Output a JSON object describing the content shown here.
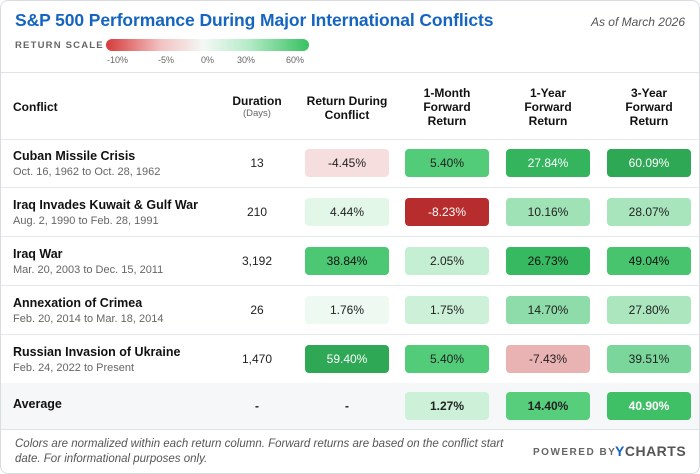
{
  "title": "S&P 500 Performance During Major International Conflicts",
  "as_of": "As of March 2026",
  "scale": {
    "label": "RETURN SCALE",
    "ticks": [
      "-10%",
      "-5%",
      "0%",
      "30%",
      "60%"
    ]
  },
  "headers": {
    "conflict": "Conflict",
    "duration": "Duration",
    "duration_sub": "(Days)",
    "during_1": "Return During",
    "during_2": "Conflict",
    "m1_1": "1-Month",
    "m1_2": "Forward",
    "m1_3": "Return",
    "y1_1": "1-Year",
    "y1_2": "Forward",
    "y1_3": "Return",
    "y3_1": "3-Year",
    "y3_2": "Forward",
    "y3_3": "Return"
  },
  "rows": [
    {
      "name": "Cuban Missile Crisis",
      "dates": "Oct. 16, 1962 to Oct. 28, 1962",
      "duration": "13",
      "during": "-4.45%",
      "m1": "5.40%",
      "y1": "27.84%",
      "y3": "60.09%"
    },
    {
      "name": "Iraq Invades Kuwait & Gulf War",
      "dates": "Aug. 2, 1990 to Feb. 28, 1991",
      "duration": "210",
      "during": "4.44%",
      "m1": "-8.23%",
      "y1": "10.16%",
      "y3": "28.07%"
    },
    {
      "name": "Iraq War",
      "dates": "Mar. 20, 2003 to Dec. 15, 2011",
      "duration": "3,192",
      "during": "38.84%",
      "m1": "2.05%",
      "y1": "26.73%",
      "y3": "49.04%"
    },
    {
      "name": "Annexation of Crimea",
      "dates": "Feb. 20, 2014 to Mar. 18, 2014",
      "duration": "26",
      "during": "1.76%",
      "m1": "1.75%",
      "y1": "14.70%",
      "y3": "27.80%"
    },
    {
      "name": "Russian Invasion of Ukraine",
      "dates": "Feb. 24, 2022 to Present",
      "duration": "1,470",
      "during": "59.40%",
      "m1": "5.40%",
      "y1": "-7.43%",
      "y3": "39.51%"
    }
  ],
  "average": {
    "name": "Average",
    "duration": "-",
    "during": "-",
    "m1": "1.27%",
    "y1": "14.40%",
    "y3": "40.90%"
  },
  "footnote": "Colors are normalized within each return column. Forward returns are based on the conflict start date. For informational purposes only.",
  "powered_by": "POWERED BY",
  "brand_y": "Y",
  "brand_rest": "CHARTS",
  "chart_data": {
    "type": "table",
    "title": "S&P 500 Performance During Major International Conflicts",
    "columns": [
      "Conflict",
      "Duration (Days)",
      "Return During Conflict",
      "1-Month Forward Return",
      "1-Year Forward Return",
      "3-Year Forward Return"
    ],
    "rows": [
      [
        "Cuban Missile Crisis",
        13,
        -4.45,
        5.4,
        27.84,
        60.09
      ],
      [
        "Iraq Invades Kuwait & Gulf War",
        210,
        4.44,
        -8.23,
        10.16,
        28.07
      ],
      [
        "Iraq War",
        3192,
        38.84,
        2.05,
        26.73,
        49.04
      ],
      [
        "Annexation of Crimea",
        26,
        1.76,
        1.75,
        14.7,
        27.8
      ],
      [
        "Russian Invasion of Ukraine",
        1470,
        59.4,
        5.4,
        -7.43,
        39.51
      ]
    ],
    "average": [
      "Average",
      null,
      null,
      1.27,
      14.4,
      40.9
    ]
  },
  "cell_colors": {
    "during": [
      "#f6dede",
      "#e3f7e9",
      "#4cc773",
      "#edf9f1",
      "#2fa855"
    ],
    "m1": [
      "#52cc78",
      "#b72d2d",
      "#c5efd3",
      "#cdf1d8",
      "#52cc78"
    ],
    "y1": [
      "#33b45d",
      "#9fe2b6",
      "#36b960",
      "#8edca9",
      "#eab3b3"
    ],
    "y3": [
      "#2fa855",
      "#a8e5bd",
      "#48c46f",
      "#abe6bf",
      "#7ad69a"
    ],
    "avg_m1": "#cdf1d8",
    "avg_y1": "#57ce7b",
    "avg_y3": "#3fbf66",
    "text_dark_bg": "#ffffff"
  }
}
